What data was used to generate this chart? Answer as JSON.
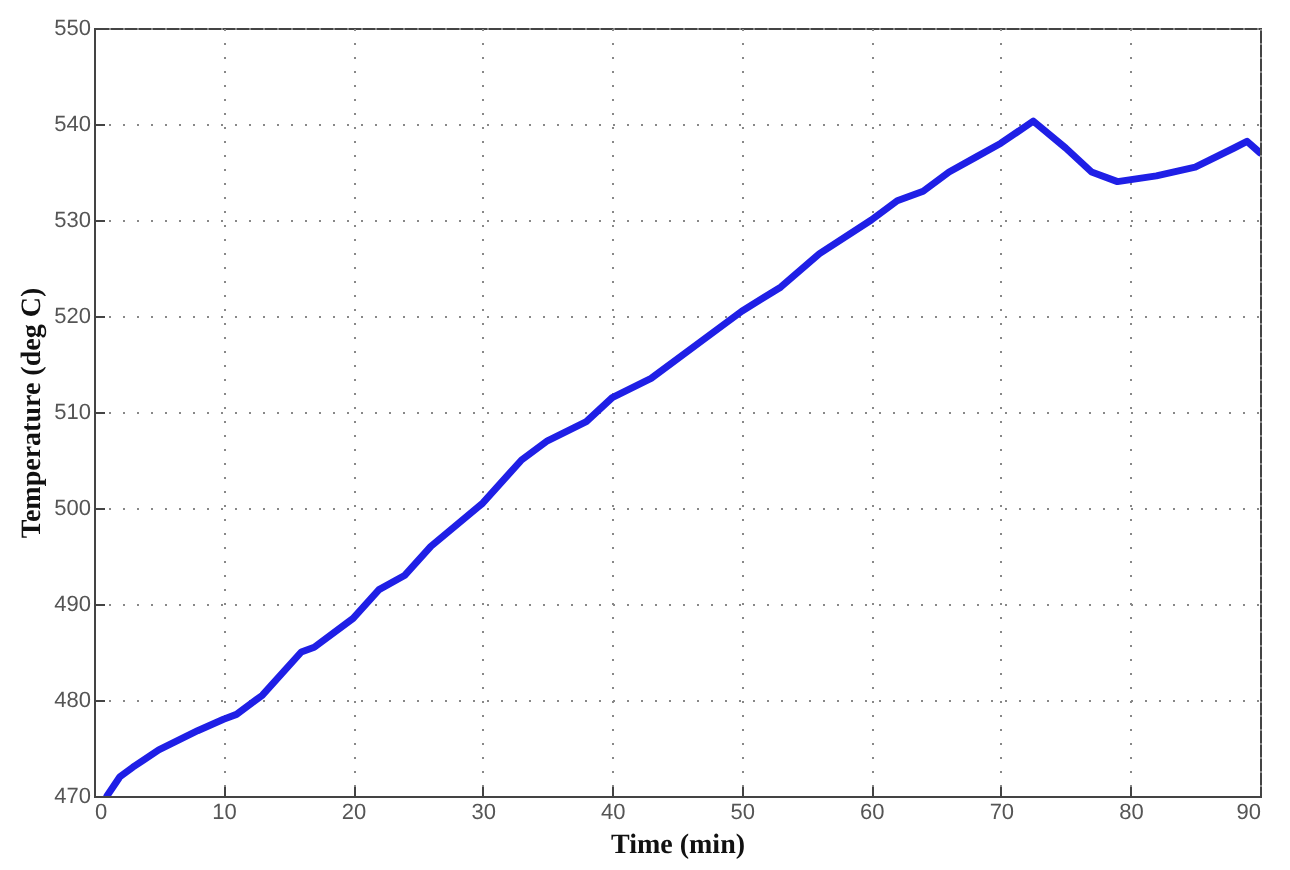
{
  "chart_data": {
    "type": "line",
    "xlabel": "Time (min)",
    "ylabel": "Temperature (deg C)",
    "x": [
      1,
      2,
      3,
      5,
      8,
      10,
      11,
      13,
      16,
      17,
      20,
      22,
      24,
      26,
      30,
      33,
      35,
      38,
      40,
      43,
      47,
      50,
      53,
      56,
      60,
      62,
      64,
      66,
      68,
      70,
      72.5,
      75,
      77,
      79,
      82,
      85,
      88,
      89,
      90
    ],
    "series": [
      {
        "color": "#1f1fe6",
        "values": [
          470,
          472,
          473,
          474.8,
          476.8,
          478,
          478.5,
          480.5,
          485,
          485.5,
          488.5,
          491.5,
          493,
          496,
          500.5,
          505,
          507,
          509,
          511.5,
          513.5,
          517.5,
          520.5,
          523,
          526.5,
          530,
          532,
          533,
          535,
          536.5,
          538,
          540.3,
          537.5,
          535,
          534,
          534.6,
          535.5,
          537.5,
          538.2,
          537
        ]
      }
    ],
    "xlim": [
      0,
      90
    ],
    "xticks": [
      0,
      10,
      20,
      30,
      40,
      50,
      60,
      70,
      80,
      90
    ],
    "ylim": [
      470,
      550
    ],
    "yticks": [
      470,
      480,
      490,
      500,
      510,
      520,
      530,
      540,
      550
    ],
    "grid": true,
    "line_style": "solid",
    "marker": "none"
  }
}
